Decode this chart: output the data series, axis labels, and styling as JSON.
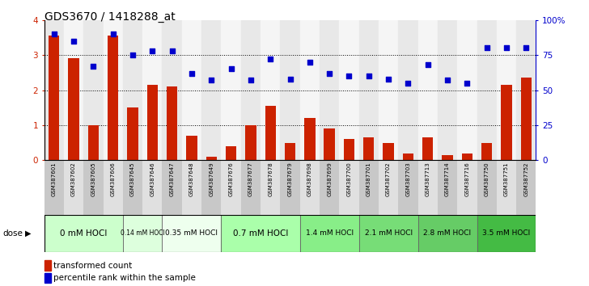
{
  "title": "GDS3670 / 1418288_at",
  "samples": [
    "GSM387601",
    "GSM387602",
    "GSM387605",
    "GSM387606",
    "GSM387645",
    "GSM387646",
    "GSM387647",
    "GSM387648",
    "GSM387649",
    "GSM387676",
    "GSM387677",
    "GSM387678",
    "GSM387679",
    "GSM387698",
    "GSM387699",
    "GSM387700",
    "GSM387701",
    "GSM387702",
    "GSM387703",
    "GSM387713",
    "GSM387714",
    "GSM387716",
    "GSM387750",
    "GSM387751",
    "GSM387752"
  ],
  "bar_values": [
    3.55,
    2.9,
    1.0,
    3.55,
    1.5,
    2.15,
    2.1,
    0.7,
    0.1,
    0.4,
    1.0,
    1.55,
    0.5,
    1.2,
    0.9,
    0.6,
    0.65,
    0.5,
    0.2,
    0.65,
    0.15,
    0.2,
    0.5,
    2.15,
    2.35
  ],
  "percentile_values": [
    90,
    85,
    67,
    90,
    75,
    78,
    78,
    62,
    57,
    65,
    57,
    72,
    58,
    70,
    62,
    60,
    60,
    58,
    55,
    68,
    57,
    55,
    80,
    80,
    80
  ],
  "dose_groups": [
    {
      "label": "0 mM HOCl",
      "start": 0,
      "end": 4,
      "color": "#ccffcc"
    },
    {
      "label": "0.14 mM HOCl",
      "start": 4,
      "end": 6,
      "color": "#ddffdd"
    },
    {
      "label": "0.35 mM HOCl",
      "start": 6,
      "end": 9,
      "color": "#eeffee"
    },
    {
      "label": "0.7 mM HOCl",
      "start": 9,
      "end": 13,
      "color": "#aaffaa"
    },
    {
      "label": "1.4 mM HOCl",
      "start": 13,
      "end": 16,
      "color": "#88ee88"
    },
    {
      "label": "2.1 mM HOCl",
      "start": 16,
      "end": 19,
      "color": "#77dd77"
    },
    {
      "label": "2.8 mM HOCl",
      "start": 19,
      "end": 22,
      "color": "#66cc66"
    },
    {
      "label": "3.5 mM HOCl",
      "start": 22,
      "end": 25,
      "color": "#44bb44"
    }
  ],
  "bar_color": "#cc2200",
  "scatter_color": "#0000cc",
  "ylim_left": [
    0,
    4
  ],
  "ylim_right": [
    0,
    100
  ],
  "yticks_left": [
    0,
    1,
    2,
    3,
    4
  ],
  "ytick_labels_right": [
    "0",
    "25",
    "50",
    "75",
    "100%"
  ],
  "yticks_right": [
    0,
    25,
    50,
    75,
    100
  ],
  "title_fontsize": 10
}
